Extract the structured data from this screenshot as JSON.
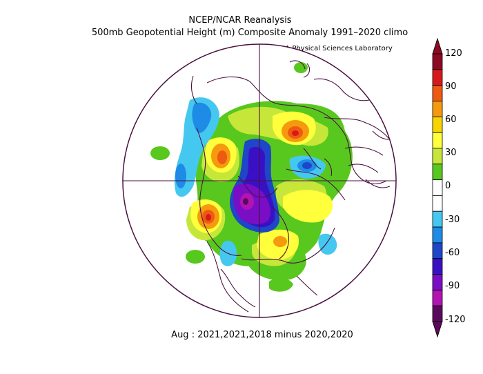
{
  "map": {
    "title_line1": "NCEP/NCAR Reanalysis",
    "title_line2": "500mb Geopotential Height (m) Composite Anomaly 1991–2020 climo",
    "credit": "NOAA Physical Sciences Laboratory",
    "caption": "Aug : 2021,2021,2018 minus 2020,2020",
    "projection": "north-polar-stereographic",
    "variable": "500mb geopotential height anomaly (m)"
  },
  "colorbar": {
    "labels": [
      "120",
      "90",
      "60",
      "30",
      "0",
      "-30",
      "-60",
      "-90",
      "-120"
    ],
    "colors": [
      "#8c0a24",
      "#d7191c",
      "#ee5a12",
      "#f59a0e",
      "#f8d400",
      "#ffff3c",
      "#c6e73a",
      "#58c81e",
      "#ffffff",
      "#ffffff",
      "#45c8f0",
      "#1e8be6",
      "#1f45c8",
      "#3a10c4",
      "#7a0ec4",
      "#b214b4",
      "#5a0a5a"
    ]
  }
}
